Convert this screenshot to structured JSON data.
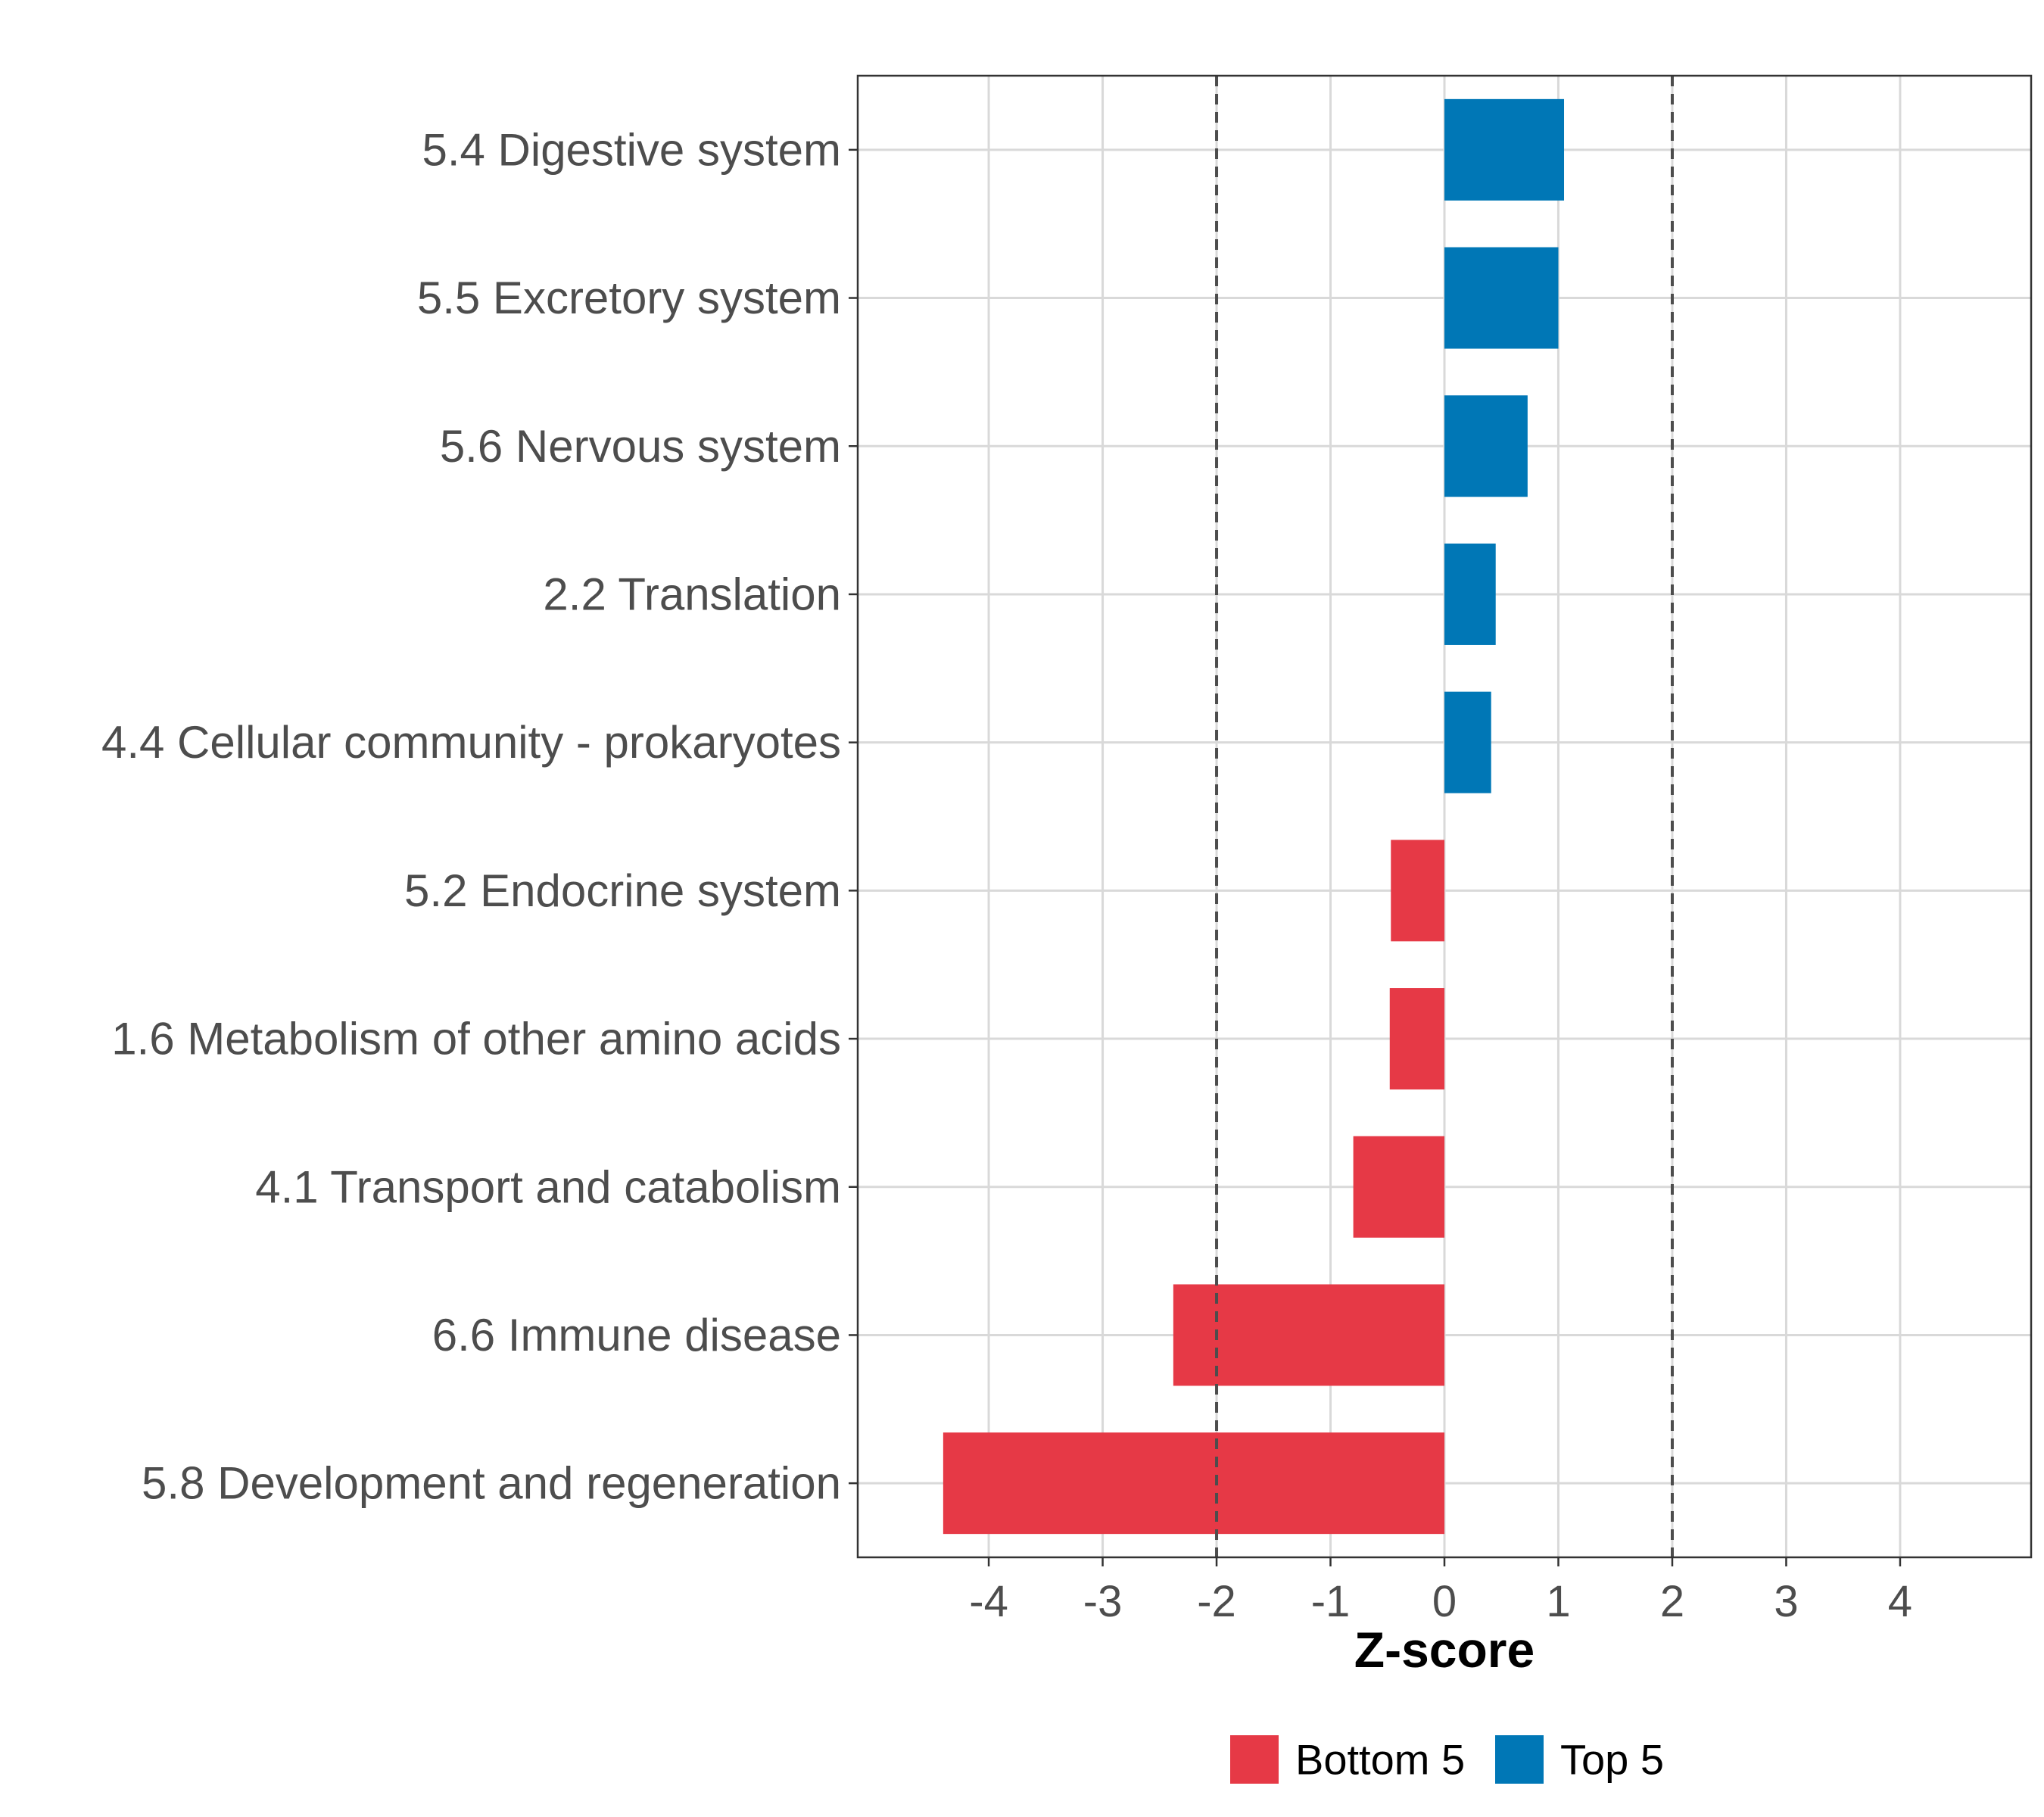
{
  "colors": {
    "negative": "#E63946",
    "positive": "#0077B6",
    "grid": "#d9d9d9",
    "threshold": "#4d4d4d",
    "panel_border": "#333333",
    "text": "#4d4d4d"
  },
  "chart_data": {
    "type": "bar",
    "orientation": "horizontal",
    "categories": [
      "5.4 Digestive system",
      "5.5 Excretory system",
      "5.6 Nervous system",
      "2.2 Translation",
      "4.4 Cellular community - prokaryotes",
      "5.2 Endocrine system",
      "1.6 Metabolism of other amino acids",
      "4.1 Transport and catabolism",
      "6.6 Immune disease",
      "5.8 Development and regeneration"
    ],
    "values": [
      1.05,
      1.0,
      0.73,
      0.45,
      0.41,
      -0.47,
      -0.48,
      -0.8,
      -2.38,
      -4.4
    ],
    "groups": [
      "Top 5",
      "Top 5",
      "Top 5",
      "Top 5",
      "Top 5",
      "Bottom 5",
      "Bottom 5",
      "Bottom 5",
      "Bottom 5",
      "Bottom 5"
    ],
    "xlabel": "Z-score",
    "ylabel": "",
    "xlim": [
      -5.15,
      5.15
    ],
    "xticks": [
      -4,
      -3,
      -2,
      -1,
      0,
      1,
      2,
      3,
      4
    ],
    "xtick_labels": [
      "-4",
      "-3",
      "-2",
      "-1",
      "0",
      "1",
      "2",
      "3",
      "4"
    ],
    "thresholds": [
      -2,
      2
    ],
    "grid": true,
    "legend": {
      "placement": "bottom",
      "entries": [
        {
          "label": "Bottom 5",
          "color": "#E63946"
        },
        {
          "label": "Top 5",
          "color": "#0077B6"
        }
      ]
    }
  }
}
